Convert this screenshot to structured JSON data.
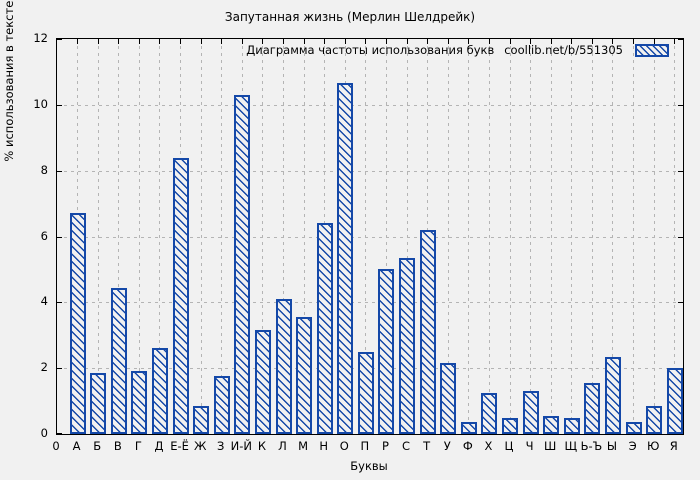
{
  "colors": {
    "accent_blue": "#1448a8",
    "background": "#f1f1f1",
    "grid": "#b4b4b4",
    "axis": "#000000"
  },
  "chart_data": {
    "type": "bar",
    "title": "Запутанная жизнь (Мерлин Шелдрейк)",
    "legend_label": "Диаграмма частоты использования букв",
    "legend_source": "coollib.net/b/551305",
    "legend_position": "top-right",
    "xlabel": "Буквы",
    "ylabel": "% использования в тексте",
    "ylim": [
      0,
      12
    ],
    "yticks": [
      0,
      2,
      4,
      6,
      8,
      10,
      12
    ],
    "origin_tick": "0",
    "grid": true,
    "bar_style": "blue diagonal hatch",
    "categories": [
      "А",
      "Б",
      "В",
      "Г",
      "Д",
      "Е-Ё",
      "Ж",
      "З",
      "И-Й",
      "К",
      "Л",
      "М",
      "Н",
      "О",
      "П",
      "Р",
      "С",
      "Т",
      "У",
      "Ф",
      "Х",
      "Ц",
      "Ч",
      "Ш",
      "Щ",
      "Ь-Ъ",
      "Ы",
      "Э",
      "Ю",
      "Я"
    ],
    "values": [
      6.7,
      1.85,
      4.45,
      1.9,
      2.6,
      8.4,
      0.85,
      1.75,
      10.3,
      3.15,
      4.1,
      3.55,
      6.4,
      10.65,
      2.5,
      5.0,
      5.35,
      6.2,
      2.15,
      0.35,
      1.25,
      0.5,
      1.3,
      0.55,
      0.5,
      1.55,
      2.35,
      0.35,
      0.85,
      2.0
    ]
  }
}
